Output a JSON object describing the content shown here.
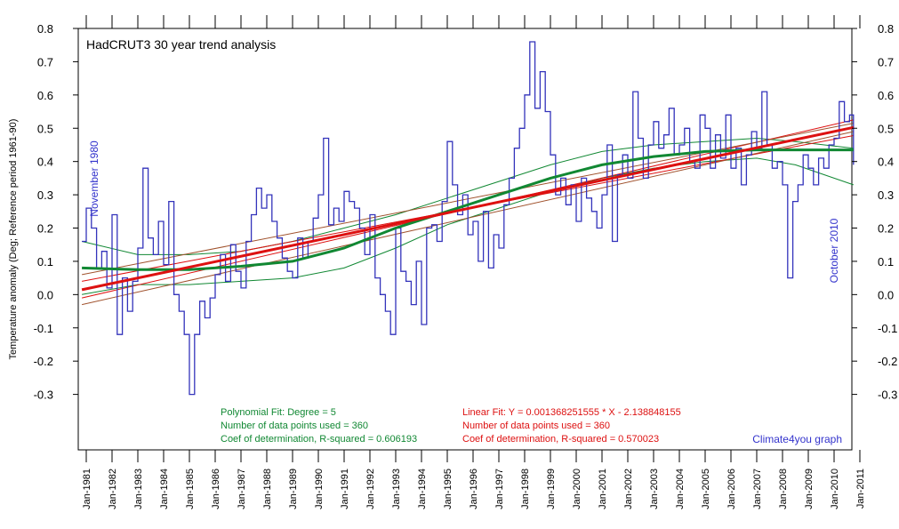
{
  "chart_data": {
    "type": "line",
    "title": "HadCRUT3 30 year trend analysis",
    "ylabel": "Temperature anomaly (Deg; Reference period 1961-90)",
    "xlabel": "",
    "ylim": [
      -0.35,
      0.8
    ],
    "xlim": [
      1980.75,
      2011.05
    ],
    "y_ticks": [
      "-0.3",
      "-0.2",
      "-0.1",
      "0.0",
      "0.1",
      "0.2",
      "0.3",
      "0.4",
      "0.5",
      "0.6",
      "0.7",
      "0.8"
    ],
    "y_ticks_right": [
      "-0.3",
      "-0.2",
      "-0.1",
      "0.0",
      "0.1",
      "0.2",
      "0.3",
      "0.4",
      "0.5",
      "0.6",
      "0.7",
      "0.8"
    ],
    "x_tick_labels": [
      "Jan-1981",
      "Jan-1982",
      "Jan-1983",
      "Jan-1984",
      "Jan-1985",
      "Jan-1986",
      "Jan-1987",
      "Jan-1988",
      "Jan-1989",
      "Jan-1990",
      "Jan-1991",
      "Jan-1992",
      "Jan-1993",
      "Jan-1994",
      "Jan-1995",
      "Jan-1996",
      "Jan-1997",
      "Jan-1998",
      "Jan-1999",
      "Jan-2000",
      "Jan-2001",
      "Jan-2002",
      "Jan-2003",
      "Jan-2004",
      "Jan-2005",
      "Jan-2006",
      "Jan-2007",
      "Jan-2008",
      "Jan-2009",
      "Jan-2010",
      "Jan-2011"
    ],
    "grid": false,
    "annotations": {
      "start_label": "November 1980",
      "end_label": "October 2010",
      "credit": "Climate4you graph",
      "poly_line1": "Polynomial Fit:   Degree = 5",
      "poly_line2": "Number of data points used = 360",
      "poly_line3": "Coef of determination, R-squared = 0.606193",
      "lin_line1": "Linear Fit:   Y = 0.001368251555 * X - 2.138848155",
      "lin_line2": "Number of data points used = 360",
      "lin_line3": "Coef of determination, R-squared = 0.570023"
    },
    "colors": {
      "monthly": "#3333bb",
      "linear": "#dd1111",
      "polynomial": "#118833",
      "annotation_blue": "#3333cc",
      "poly_text": "#118833",
      "lin_text": "#dd1111"
    },
    "series": [
      {
        "kind": "monthly",
        "points": [
          [
            1980.83,
            0.16
          ],
          [
            1981.0,
            0.26
          ],
          [
            1981.2,
            0.2
          ],
          [
            1981.4,
            0.08
          ],
          [
            1981.6,
            0.13
          ],
          [
            1981.8,
            0.02
          ],
          [
            1982.0,
            0.24
          ],
          [
            1982.2,
            -0.12
          ],
          [
            1982.4,
            0.05
          ],
          [
            1982.6,
            -0.05
          ],
          [
            1982.8,
            0.04
          ],
          [
            1983.0,
            0.14
          ],
          [
            1983.2,
            0.38
          ],
          [
            1983.4,
            0.17
          ],
          [
            1983.6,
            0.12
          ],
          [
            1983.8,
            0.22
          ],
          [
            1984.0,
            0.09
          ],
          [
            1984.2,
            0.28
          ],
          [
            1984.4,
            0.0
          ],
          [
            1984.6,
            -0.05
          ],
          [
            1984.8,
            -0.12
          ],
          [
            1985.0,
            -0.3
          ],
          [
            1985.2,
            -0.12
          ],
          [
            1985.4,
            -0.02
          ],
          [
            1985.6,
            -0.07
          ],
          [
            1985.8,
            -0.01
          ],
          [
            1986.0,
            0.06
          ],
          [
            1986.2,
            0.12
          ],
          [
            1986.4,
            0.04
          ],
          [
            1986.6,
            0.15
          ],
          [
            1986.8,
            0.07
          ],
          [
            1987.0,
            0.02
          ],
          [
            1987.2,
            0.16
          ],
          [
            1987.4,
            0.24
          ],
          [
            1987.6,
            0.32
          ],
          [
            1987.8,
            0.26
          ],
          [
            1988.0,
            0.3
          ],
          [
            1988.2,
            0.22
          ],
          [
            1988.4,
            0.17
          ],
          [
            1988.6,
            0.11
          ],
          [
            1988.8,
            0.07
          ],
          [
            1989.0,
            0.05
          ],
          [
            1989.2,
            0.17
          ],
          [
            1989.4,
            0.11
          ],
          [
            1989.6,
            0.16
          ],
          [
            1989.8,
            0.23
          ],
          [
            1990.0,
            0.3
          ],
          [
            1990.2,
            0.47
          ],
          [
            1990.4,
            0.21
          ],
          [
            1990.6,
            0.26
          ],
          [
            1990.8,
            0.22
          ],
          [
            1991.0,
            0.31
          ],
          [
            1991.2,
            0.28
          ],
          [
            1991.4,
            0.26
          ],
          [
            1991.6,
            0.2
          ],
          [
            1991.8,
            0.12
          ],
          [
            1992.0,
            0.24
          ],
          [
            1992.2,
            0.05
          ],
          [
            1992.4,
            0.0
          ],
          [
            1992.6,
            -0.05
          ],
          [
            1992.8,
            -0.12
          ],
          [
            1993.0,
            0.2
          ],
          [
            1993.2,
            0.07
          ],
          [
            1993.4,
            0.04
          ],
          [
            1993.6,
            -0.03
          ],
          [
            1993.8,
            0.1
          ],
          [
            1994.0,
            -0.09
          ],
          [
            1994.2,
            0.2
          ],
          [
            1994.4,
            0.21
          ],
          [
            1994.6,
            0.16
          ],
          [
            1994.8,
            0.28
          ],
          [
            1995.0,
            0.46
          ],
          [
            1995.2,
            0.33
          ],
          [
            1995.4,
            0.24
          ],
          [
            1995.6,
            0.3
          ],
          [
            1995.8,
            0.18
          ],
          [
            1996.0,
            0.22
          ],
          [
            1996.2,
            0.1
          ],
          [
            1996.4,
            0.25
          ],
          [
            1996.6,
            0.08
          ],
          [
            1996.8,
            0.18
          ],
          [
            1997.0,
            0.14
          ],
          [
            1997.2,
            0.27
          ],
          [
            1997.4,
            0.35
          ],
          [
            1997.6,
            0.44
          ],
          [
            1997.8,
            0.5
          ],
          [
            1998.0,
            0.6
          ],
          [
            1998.2,
            0.76
          ],
          [
            1998.4,
            0.56
          ],
          [
            1998.6,
            0.67
          ],
          [
            1998.8,
            0.55
          ],
          [
            1999.0,
            0.42
          ],
          [
            1999.2,
            0.3
          ],
          [
            1999.4,
            0.35
          ],
          [
            1999.6,
            0.27
          ],
          [
            1999.8,
            0.33
          ],
          [
            2000.0,
            0.22
          ],
          [
            2000.2,
            0.35
          ],
          [
            2000.4,
            0.29
          ],
          [
            2000.6,
            0.25
          ],
          [
            2000.8,
            0.2
          ],
          [
            2001.0,
            0.3
          ],
          [
            2001.2,
            0.45
          ],
          [
            2001.4,
            0.16
          ],
          [
            2001.6,
            0.36
          ],
          [
            2001.8,
            0.42
          ],
          [
            2002.0,
            0.35
          ],
          [
            2002.2,
            0.61
          ],
          [
            2002.4,
            0.47
          ],
          [
            2002.6,
            0.35
          ],
          [
            2002.8,
            0.45
          ],
          [
            2003.0,
            0.52
          ],
          [
            2003.2,
            0.44
          ],
          [
            2003.4,
            0.48
          ],
          [
            2003.6,
            0.56
          ],
          [
            2003.8,
            0.42
          ],
          [
            2004.0,
            0.45
          ],
          [
            2004.2,
            0.5
          ],
          [
            2004.4,
            0.4
          ],
          [
            2004.6,
            0.38
          ],
          [
            2004.8,
            0.54
          ],
          [
            2005.0,
            0.5
          ],
          [
            2005.2,
            0.38
          ],
          [
            2005.4,
            0.48
          ],
          [
            2005.6,
            0.41
          ],
          [
            2005.8,
            0.54
          ],
          [
            2006.0,
            0.38
          ],
          [
            2006.2,
            0.44
          ],
          [
            2006.4,
            0.33
          ],
          [
            2006.6,
            0.42
          ],
          [
            2006.8,
            0.49
          ],
          [
            2007.0,
            0.44
          ],
          [
            2007.2,
            0.61
          ],
          [
            2007.4,
            0.45
          ],
          [
            2007.6,
            0.38
          ],
          [
            2007.8,
            0.4
          ],
          [
            2008.0,
            0.33
          ],
          [
            2008.2,
            0.05
          ],
          [
            2008.4,
            0.28
          ],
          [
            2008.6,
            0.33
          ],
          [
            2008.8,
            0.42
          ],
          [
            2009.0,
            0.38
          ],
          [
            2009.2,
            0.33
          ],
          [
            2009.4,
            0.41
          ],
          [
            2009.6,
            0.38
          ],
          [
            2009.8,
            0.45
          ],
          [
            2010.0,
            0.47
          ],
          [
            2010.2,
            0.58
          ],
          [
            2010.4,
            0.52
          ],
          [
            2010.6,
            0.54
          ],
          [
            2010.75,
            0.39
          ]
        ]
      },
      {
        "kind": "linear",
        "name": "Linear Fit",
        "points": [
          [
            1980.83,
            0.0145
          ],
          [
            2010.75,
            0.5026
          ]
        ],
        "band": [
          [
            [
              1980.83,
              -0.01
            ],
            [
              2010.75,
              0.525
            ]
          ],
          [
            [
              1980.83,
              0.04
            ],
            [
              2010.75,
              0.478
            ]
          ]
        ],
        "extra": [
          [
            [
              1980.83,
              -0.03
            ],
            [
              2010.75,
              0.49
            ]
          ],
          [
            [
              1980.83,
              0.06
            ],
            [
              2010.75,
              0.515
            ]
          ]
        ]
      },
      {
        "kind": "polynomial",
        "name": "Polynomial Fit",
        "points": [
          [
            1980.83,
            0.08
          ],
          [
            1983,
            0.075
          ],
          [
            1985,
            0.075
          ],
          [
            1987,
            0.085
          ],
          [
            1989,
            0.1
          ],
          [
            1991,
            0.14
          ],
          [
            1993,
            0.2
          ],
          [
            1995,
            0.25
          ],
          [
            1997,
            0.3
          ],
          [
            1999,
            0.35
          ],
          [
            2001,
            0.39
          ],
          [
            2003,
            0.415
          ],
          [
            2005,
            0.43
          ],
          [
            2007,
            0.435
          ],
          [
            2008.5,
            0.435
          ],
          [
            2010.75,
            0.435
          ]
        ],
        "upper": [
          [
            1980.83,
            0.16
          ],
          [
            1983,
            0.12
          ],
          [
            1985,
            0.12
          ],
          [
            1987,
            0.13
          ],
          [
            1989,
            0.16
          ],
          [
            1991,
            0.2
          ],
          [
            1993,
            0.24
          ],
          [
            1995,
            0.29
          ],
          [
            1997,
            0.34
          ],
          [
            1999,
            0.39
          ],
          [
            2001,
            0.43
          ],
          [
            2003,
            0.45
          ],
          [
            2005,
            0.46
          ],
          [
            2007,
            0.47
          ],
          [
            2008.5,
            0.46
          ],
          [
            2010.75,
            0.44
          ]
        ],
        "lower": [
          [
            1980.83,
            0.0
          ],
          [
            1983,
            0.03
          ],
          [
            1985,
            0.03
          ],
          [
            1987,
            0.04
          ],
          [
            1989,
            0.05
          ],
          [
            1991,
            0.08
          ],
          [
            1993,
            0.14
          ],
          [
            1995,
            0.21
          ],
          [
            1997,
            0.26
          ],
          [
            1999,
            0.31
          ],
          [
            2001,
            0.35
          ],
          [
            2003,
            0.38
          ],
          [
            2005,
            0.4
          ],
          [
            2007,
            0.41
          ],
          [
            2008.5,
            0.39
          ],
          [
            2010.75,
            0.33
          ]
        ]
      }
    ]
  }
}
